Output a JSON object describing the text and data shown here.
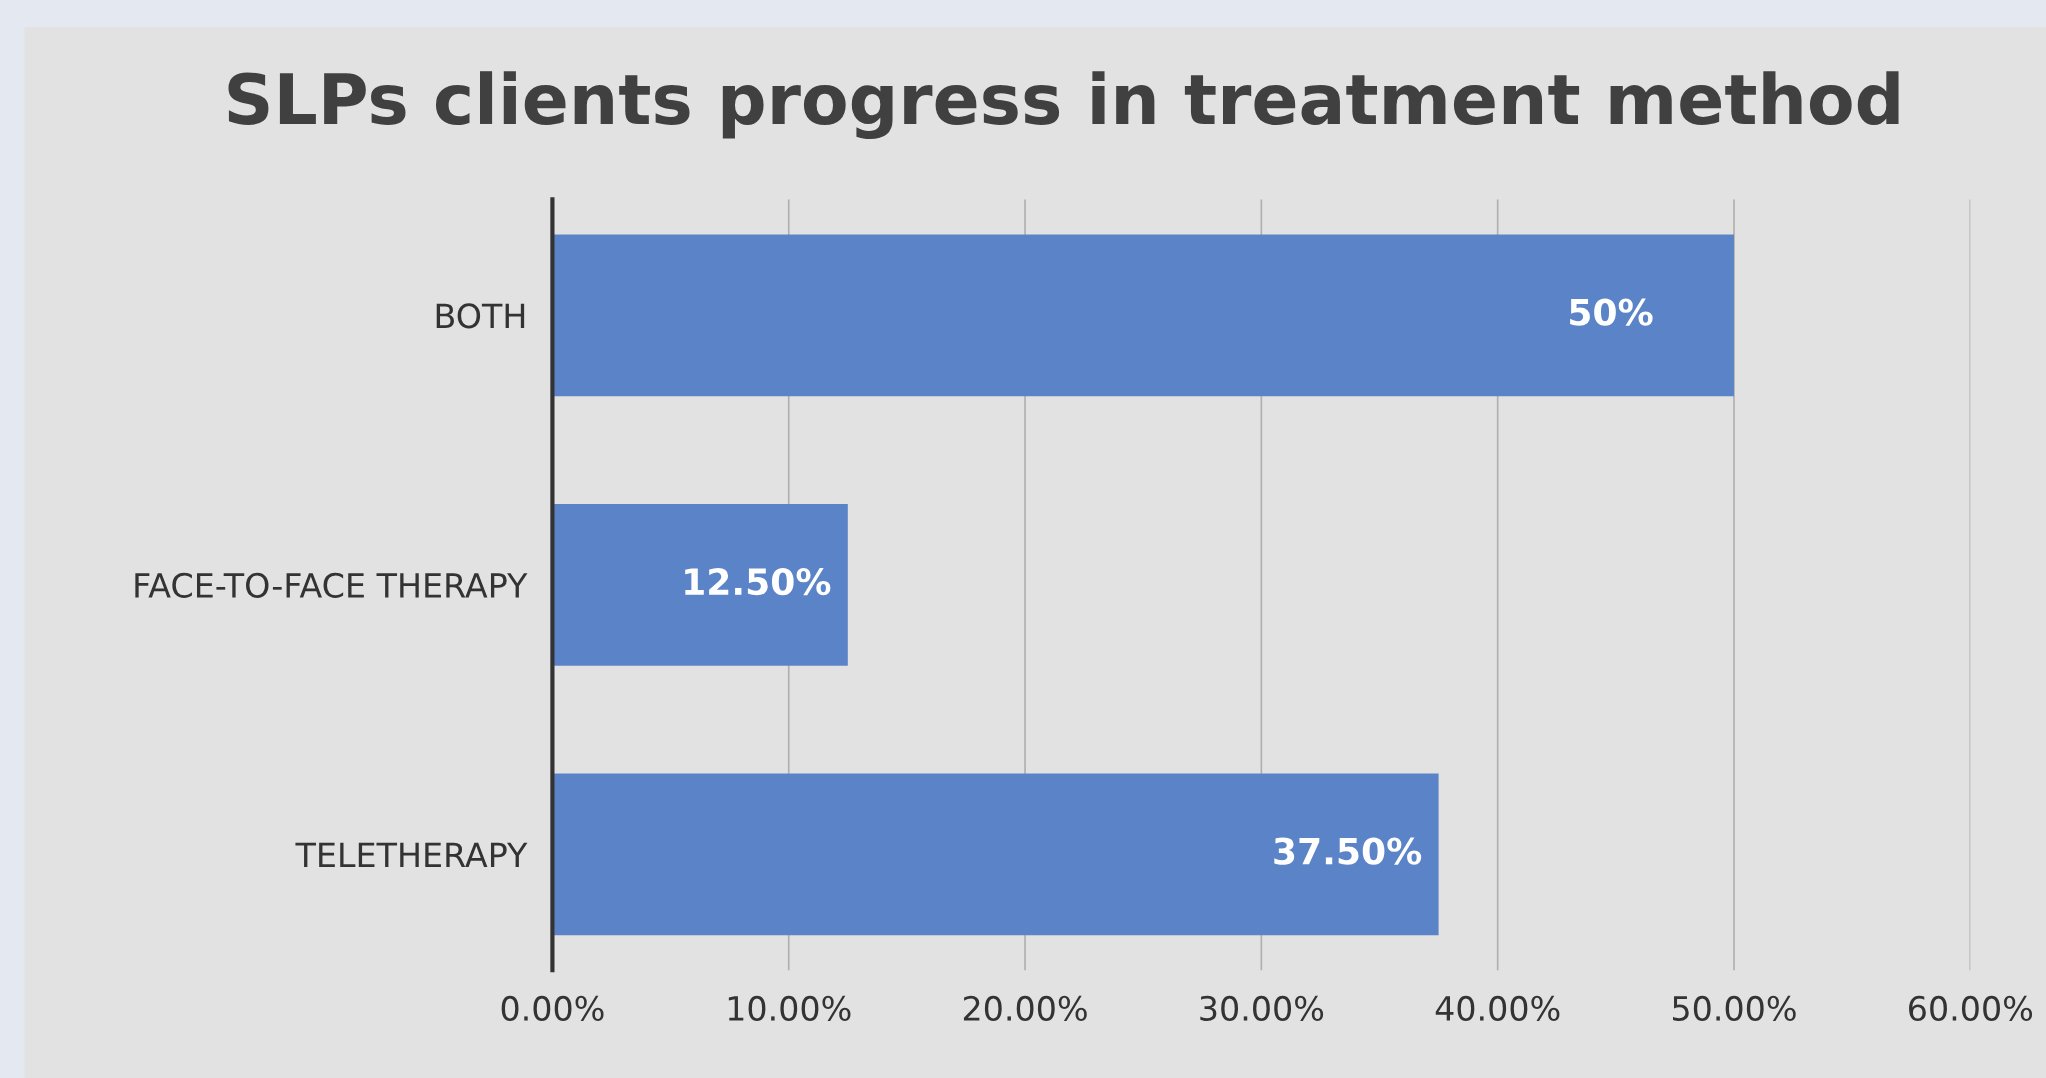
{
  "chart_data": {
    "type": "bar",
    "orientation": "horizontal",
    "title": "SLPs clients progress in treatment method",
    "categories": [
      "BOTH",
      "FACE-TO-FACE THERAPY",
      "TELETHERAPY"
    ],
    "values": [
      50,
      12.5,
      37.5
    ],
    "value_labels": [
      "50%",
      "12.50%",
      "37.50%"
    ],
    "color": "#5b84c8",
    "xlim": [
      0,
      60
    ],
    "xticks": [
      {
        "value": 0,
        "label": "0.00%"
      },
      {
        "value": 10,
        "label": "10.00%"
      },
      {
        "value": 20,
        "label": "20.00%"
      },
      {
        "value": 30,
        "label": "30.00%"
      },
      {
        "value": 40,
        "label": "40.00%"
      },
      {
        "value": 50,
        "label": "50.00%"
      },
      {
        "value": 60,
        "label": "60.00%"
      }
    ],
    "grid": "x"
  }
}
